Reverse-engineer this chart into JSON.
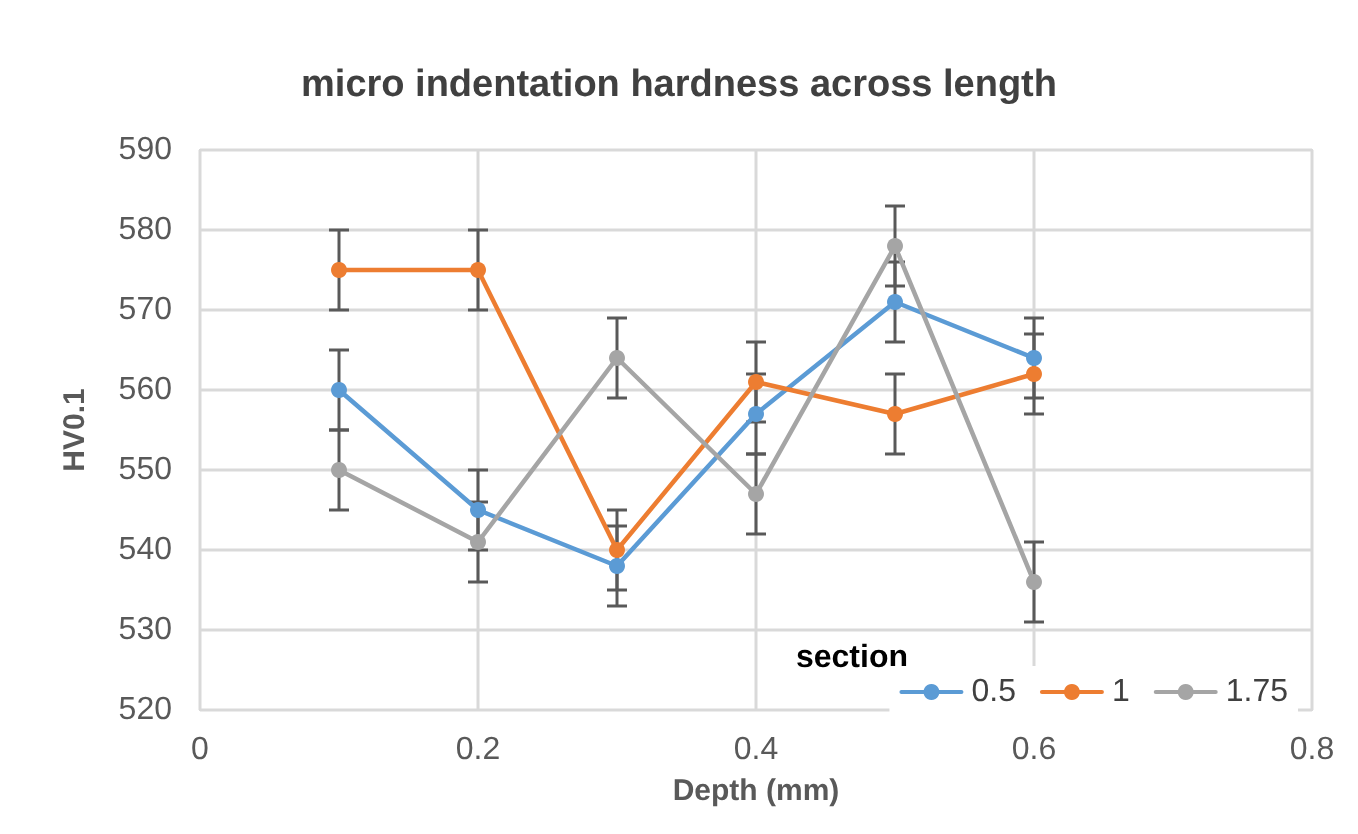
{
  "chart_data": {
    "type": "line",
    "title": "micro indentation hardness across length",
    "xlabel": "Depth (mm)",
    "ylabel": "HV0.1",
    "legend_title": "section",
    "x": [
      0.1,
      0.2,
      0.3,
      0.4,
      0.5,
      0.6
    ],
    "series": [
      {
        "name": "0.5",
        "color": "#5b9bd5",
        "values": [
          560,
          545,
          538,
          557,
          571,
          564
        ],
        "errors": [
          5,
          5,
          5,
          5,
          5,
          5
        ]
      },
      {
        "name": "1",
        "color": "#ed7d31",
        "values": [
          575,
          575,
          540,
          561,
          557,
          562
        ],
        "errors": [
          5,
          5,
          5,
          5,
          5,
          5
        ]
      },
      {
        "name": "1.75",
        "color": "#a5a5a5",
        "values": [
          550,
          541,
          564,
          547,
          578,
          536
        ],
        "errors": [
          5,
          5,
          5,
          5,
          5,
          5
        ]
      }
    ],
    "xlim": [
      0,
      0.8
    ],
    "xticks": [
      0,
      0.2,
      0.4,
      0.6,
      0.8
    ],
    "ylim": [
      520,
      590
    ],
    "yticks": [
      520,
      530,
      540,
      550,
      560,
      570,
      580,
      590
    ],
    "grid": true,
    "legend": "bottom right",
    "marker": "circle",
    "line_style": "solid"
  }
}
